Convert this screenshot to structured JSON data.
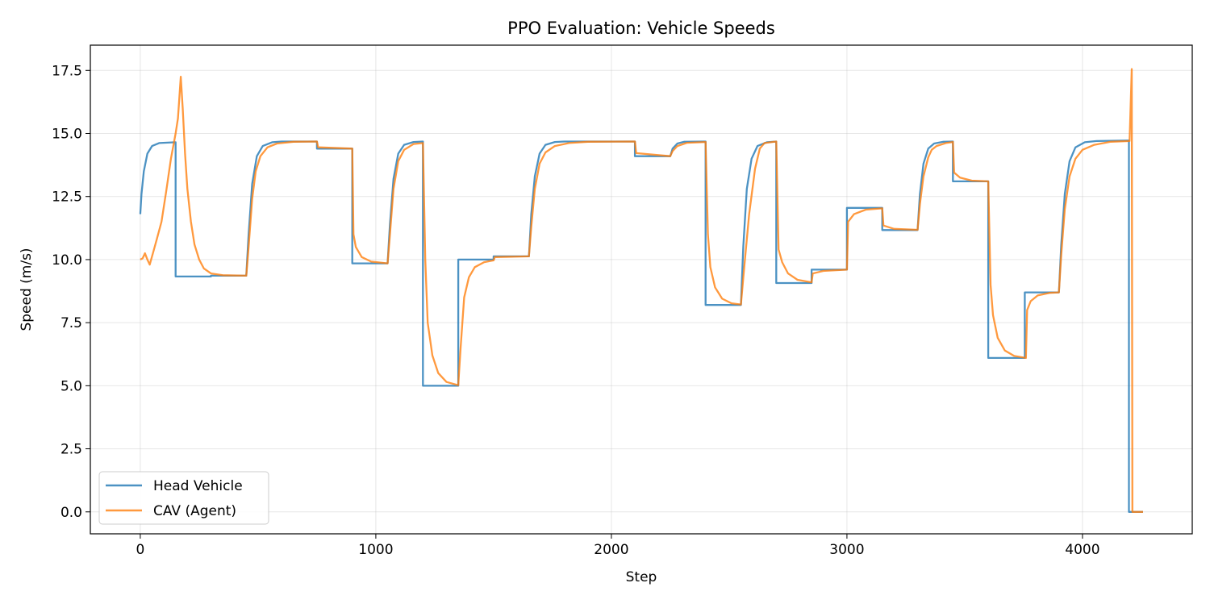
{
  "chart_data": {
    "type": "line",
    "title": "PPO Evaluation: Vehicle Speeds",
    "xlabel": "Step",
    "ylabel": "Speed (m/s)",
    "xlim": [
      -212,
      4466
    ],
    "ylim": [
      -0.87,
      18.5
    ],
    "xticks": [
      0,
      1000,
      2000,
      3000,
      4000
    ],
    "xtick_labels": [
      "0",
      "1000",
      "2000",
      "3000",
      "4000"
    ],
    "yticks": [
      0,
      2.5,
      5,
      7.5,
      10,
      12.5,
      15,
      17.5
    ],
    "ytick_labels": [
      "0.0",
      "2.5",
      "5.0",
      "7.5",
      "10.0",
      "12.5",
      "15.0",
      "17.5"
    ],
    "grid": true,
    "legend_position": "lower-left",
    "series": [
      {
        "name": "Head Vehicle",
        "color": "#1f77b4",
        "points": [
          [
            0,
            11.8
          ],
          [
            5,
            12.6
          ],
          [
            15,
            13.5
          ],
          [
            30,
            14.2
          ],
          [
            50,
            14.5
          ],
          [
            80,
            14.62
          ],
          [
            150,
            14.65
          ],
          [
            150,
            9.33
          ],
          [
            300,
            9.33
          ],
          [
            300,
            9.36
          ],
          [
            450,
            9.36
          ],
          [
            460,
            11
          ],
          [
            475,
            13
          ],
          [
            495,
            14.1
          ],
          [
            520,
            14.5
          ],
          [
            560,
            14.65
          ],
          [
            600,
            14.68
          ],
          [
            750,
            14.68
          ],
          [
            750,
            14.4
          ],
          [
            900,
            14.4
          ],
          [
            900,
            9.85
          ],
          [
            1050,
            9.85
          ],
          [
            1060,
            11.4
          ],
          [
            1075,
            13.2
          ],
          [
            1095,
            14.2
          ],
          [
            1120,
            14.55
          ],
          [
            1160,
            14.66
          ],
          [
            1200,
            14.68
          ],
          [
            1200,
            5.0
          ],
          [
            1350,
            5.0
          ],
          [
            1350,
            10.0
          ],
          [
            1500,
            10.0
          ],
          [
            1500,
            10.13
          ],
          [
            1650,
            10.13
          ],
          [
            1660,
            11.8
          ],
          [
            1675,
            13.3
          ],
          [
            1695,
            14.2
          ],
          [
            1720,
            14.55
          ],
          [
            1760,
            14.66
          ],
          [
            1800,
            14.68
          ],
          [
            2100,
            14.68
          ],
          [
            2100,
            14.1
          ],
          [
            2250,
            14.1
          ],
          [
            2260,
            14.4
          ],
          [
            2280,
            14.6
          ],
          [
            2310,
            14.67
          ],
          [
            2400,
            14.68
          ],
          [
            2400,
            8.2
          ],
          [
            2550,
            8.2
          ],
          [
            2560,
            10.5
          ],
          [
            2575,
            12.8
          ],
          [
            2595,
            14.0
          ],
          [
            2620,
            14.5
          ],
          [
            2660,
            14.65
          ],
          [
            2700,
            14.68
          ],
          [
            2700,
            9.07
          ],
          [
            2850,
            9.07
          ],
          [
            2850,
            9.6
          ],
          [
            3000,
            9.6
          ],
          [
            3000,
            12.05
          ],
          [
            3150,
            12.05
          ],
          [
            3150,
            11.17
          ],
          [
            3300,
            11.17
          ],
          [
            3310,
            12.6
          ],
          [
            3325,
            13.8
          ],
          [
            3345,
            14.4
          ],
          [
            3370,
            14.6
          ],
          [
            3410,
            14.67
          ],
          [
            3450,
            14.68
          ],
          [
            3450,
            13.1
          ],
          [
            3600,
            13.1
          ],
          [
            3600,
            6.1
          ],
          [
            3755,
            6.1
          ],
          [
            3755,
            8.7
          ],
          [
            3900,
            8.7
          ],
          [
            3910,
            10.6
          ],
          [
            3925,
            12.6
          ],
          [
            3945,
            13.9
          ],
          [
            3970,
            14.45
          ],
          [
            4010,
            14.65
          ],
          [
            4060,
            14.7
          ],
          [
            4197,
            14.72
          ],
          [
            4197,
            0
          ],
          [
            4257,
            0
          ]
        ]
      },
      {
        "name": "CAV (Agent)",
        "color": "#ff7f0e",
        "points": [
          [
            0,
            10.0
          ],
          [
            10,
            10.05
          ],
          [
            20,
            10.25
          ],
          [
            30,
            10.0
          ],
          [
            40,
            9.8
          ],
          [
            55,
            10.3
          ],
          [
            70,
            10.8
          ],
          [
            90,
            11.5
          ],
          [
            110,
            12.7
          ],
          [
            130,
            14.0
          ],
          [
            150,
            15.0
          ],
          [
            160,
            15.6
          ],
          [
            172,
            17.25
          ],
          [
            180,
            16.0
          ],
          [
            190,
            14.2
          ],
          [
            200,
            12.8
          ],
          [
            215,
            11.5
          ],
          [
            230,
            10.6
          ],
          [
            250,
            10.0
          ],
          [
            270,
            9.65
          ],
          [
            300,
            9.45
          ],
          [
            350,
            9.38
          ],
          [
            450,
            9.36
          ],
          [
            460,
            10.5
          ],
          [
            475,
            12.4
          ],
          [
            490,
            13.5
          ],
          [
            510,
            14.1
          ],
          [
            540,
            14.45
          ],
          [
            580,
            14.6
          ],
          [
            650,
            14.67
          ],
          [
            750,
            14.68
          ],
          [
            755,
            14.45
          ],
          [
            900,
            14.4
          ],
          [
            905,
            11.0
          ],
          [
            915,
            10.5
          ],
          [
            940,
            10.1
          ],
          [
            980,
            9.92
          ],
          [
            1050,
            9.85
          ],
          [
            1060,
            11.0
          ],
          [
            1075,
            12.8
          ],
          [
            1095,
            13.9
          ],
          [
            1120,
            14.35
          ],
          [
            1160,
            14.58
          ],
          [
            1200,
            14.62
          ],
          [
            1210,
            10
          ],
          [
            1220,
            7.5
          ],
          [
            1240,
            6.2
          ],
          [
            1265,
            5.5
          ],
          [
            1300,
            5.15
          ],
          [
            1350,
            5.02
          ],
          [
            1360,
            6.5
          ],
          [
            1375,
            8.5
          ],
          [
            1395,
            9.3
          ],
          [
            1420,
            9.7
          ],
          [
            1460,
            9.9
          ],
          [
            1500,
            9.97
          ],
          [
            1505,
            10.1
          ],
          [
            1650,
            10.13
          ],
          [
            1660,
            11.3
          ],
          [
            1675,
            12.8
          ],
          [
            1695,
            13.8
          ],
          [
            1720,
            14.25
          ],
          [
            1760,
            14.5
          ],
          [
            1820,
            14.62
          ],
          [
            1900,
            14.67
          ],
          [
            2100,
            14.68
          ],
          [
            2105,
            14.22
          ],
          [
            2250,
            14.1
          ],
          [
            2260,
            14.3
          ],
          [
            2280,
            14.5
          ],
          [
            2320,
            14.63
          ],
          [
            2400,
            14.66
          ],
          [
            2410,
            11
          ],
          [
            2420,
            9.7
          ],
          [
            2440,
            8.9
          ],
          [
            2470,
            8.45
          ],
          [
            2510,
            8.27
          ],
          [
            2550,
            8.22
          ],
          [
            2565,
            9.8
          ],
          [
            2585,
            11.8
          ],
          [
            2610,
            13.6
          ],
          [
            2630,
            14.4
          ],
          [
            2650,
            14.62
          ],
          [
            2700,
            14.68
          ],
          [
            2710,
            10.4
          ],
          [
            2725,
            9.9
          ],
          [
            2750,
            9.45
          ],
          [
            2790,
            9.2
          ],
          [
            2850,
            9.1
          ],
          [
            2855,
            9.45
          ],
          [
            2900,
            9.55
          ],
          [
            3000,
            9.6
          ],
          [
            3005,
            11.5
          ],
          [
            3030,
            11.8
          ],
          [
            3080,
            11.98
          ],
          [
            3150,
            12.03
          ],
          [
            3155,
            11.35
          ],
          [
            3200,
            11.22
          ],
          [
            3300,
            11.18
          ],
          [
            3310,
            12.2
          ],
          [
            3325,
            13.3
          ],
          [
            3345,
            14.05
          ],
          [
            3360,
            14.35
          ],
          [
            3380,
            14.5
          ],
          [
            3420,
            14.62
          ],
          [
            3450,
            14.66
          ],
          [
            3455,
            13.45
          ],
          [
            3480,
            13.25
          ],
          [
            3530,
            13.13
          ],
          [
            3600,
            13.1
          ],
          [
            3610,
            9
          ],
          [
            3620,
            7.8
          ],
          [
            3640,
            6.9
          ],
          [
            3670,
            6.4
          ],
          [
            3710,
            6.18
          ],
          [
            3760,
            6.1
          ],
          [
            3765,
            8.0
          ],
          [
            3780,
            8.35
          ],
          [
            3810,
            8.58
          ],
          [
            3860,
            8.68
          ],
          [
            3900,
            8.7
          ],
          [
            3910,
            10.2
          ],
          [
            3925,
            12.0
          ],
          [
            3945,
            13.3
          ],
          [
            3970,
            14.0
          ],
          [
            4000,
            14.35
          ],
          [
            4050,
            14.55
          ],
          [
            4120,
            14.67
          ],
          [
            4200,
            14.7
          ],
          [
            4209,
            17.55
          ],
          [
            4212,
            0
          ],
          [
            4257,
            0
          ]
        ]
      }
    ]
  }
}
